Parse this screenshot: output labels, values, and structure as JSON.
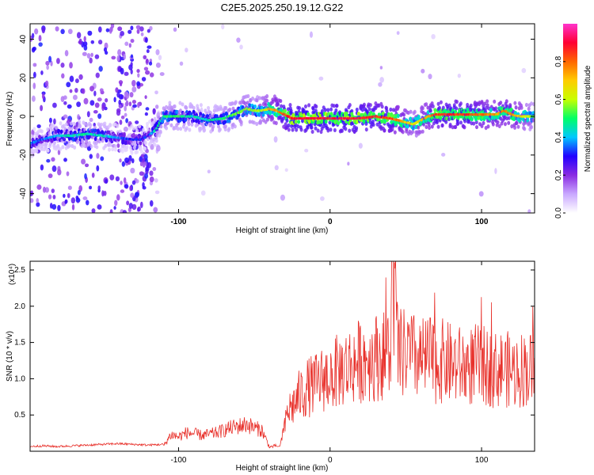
{
  "chart_data": [
    {
      "type": "heatmap",
      "title": "C2E5.2025.250.19.12.G22",
      "xlabel": "Height of straight line (km)",
      "ylabel": "Frequency (Hz)",
      "xlim": [
        -198,
        135
      ],
      "ylim": [
        -50,
        48
      ],
      "xticks": [
        -100,
        0,
        100
      ],
      "xtick_labels": [
        "-100",
        "0",
        "100"
      ],
      "yticks": [
        -40,
        -20,
        0,
        20,
        40
      ],
      "ytick_labels": [
        "-40",
        "-20",
        "0",
        "20",
        "40"
      ],
      "colorbar": {
        "label": "Normalized spectral amplitude",
        "range": [
          0,
          1
        ],
        "ticks": [
          0.0,
          0.2,
          0.4,
          0.6,
          0.8
        ],
        "tick_labels": [
          "0.0",
          "0.2",
          "0.4",
          "0.6",
          "0.8"
        ],
        "colors": [
          "#ffffff",
          "#c9a8ff",
          "#8a2be2",
          "#2200ff",
          "#00c8ff",
          "#00ff66",
          "#c8ff00",
          "#ffcc00",
          "#ff6600",
          "#ff0033",
          "#ff33cc"
        ]
      },
      "ridge": {
        "x": [
          -198,
          -190,
          -180,
          -170,
          -160,
          -150,
          -140,
          -130,
          -125,
          -120,
          -115,
          -110,
          -100,
          -90,
          -80,
          -70,
          -60,
          -55,
          -50,
          -45,
          -40,
          -35,
          -30,
          -25,
          -20,
          -10,
          0,
          10,
          20,
          30,
          40,
          50,
          55,
          60,
          65,
          70,
          80,
          90,
          100,
          110,
          115,
          120,
          125,
          130,
          135
        ],
        "freq": [
          -14,
          -12,
          -10,
          -10,
          -9,
          -10,
          -11,
          -12,
          -12,
          -10,
          -7,
          0,
          0,
          0,
          -2,
          -1,
          2,
          4,
          3,
          3,
          4,
          3,
          1,
          -1,
          -1,
          -1,
          -1,
          -1,
          -1,
          0,
          -1,
          -3,
          -4,
          -2,
          0,
          1,
          1,
          1,
          1,
          1,
          3,
          1,
          0,
          0,
          0
        ],
        "amp": [
          0.35,
          0.35,
          0.4,
          0.45,
          0.45,
          0.45,
          0.35,
          0.3,
          0.3,
          0.3,
          0.45,
          0.5,
          0.5,
          0.45,
          0.45,
          0.5,
          0.55,
          0.6,
          0.55,
          0.6,
          0.7,
          0.75,
          0.85,
          0.9,
          0.9,
          0.9,
          0.9,
          0.9,
          0.9,
          0.85,
          0.85,
          0.7,
          0.6,
          0.7,
          0.75,
          0.85,
          0.85,
          0.85,
          0.8,
          0.75,
          0.8,
          0.75,
          0.7,
          0.6,
          0.55
        ]
      }
    },
    {
      "type": "line",
      "xlabel": "Height of straight line (km)",
      "ylabel": "SNR (10 * v/v)",
      "multiplier": "(x10⁴)",
      "xlim": [
        -198,
        135
      ],
      "ylim": [
        0,
        2.62
      ],
      "xticks": [
        -100,
        0,
        100
      ],
      "xtick_labels": [
        "-100",
        "0",
        "100"
      ],
      "yticks": [
        0.5,
        1.0,
        1.5,
        2.0,
        2.5
      ],
      "ytick_labels": [
        "0.5",
        "1.0",
        "1.5",
        "2.0",
        "2.5"
      ],
      "color": "#e8312b",
      "series": [
        {
          "name": "SNR",
          "x": [
            -198,
            -190,
            -180,
            -170,
            -160,
            -150,
            -140,
            -130,
            -120,
            -110,
            -105,
            -100,
            -95,
            -90,
            -85,
            -80,
            -75,
            -70,
            -65,
            -60,
            -55,
            -50,
            -45,
            -40,
            -33,
            -32,
            -30,
            -28,
            -25,
            -22,
            -20,
            -17,
            -15,
            -12,
            -10,
            -7,
            -5,
            -2,
            0,
            5,
            10,
            15,
            20,
            25,
            30,
            35,
            40,
            41,
            45,
            50,
            55,
            60,
            65,
            70,
            75,
            80,
            85,
            90,
            95,
            100,
            105,
            110,
            115,
            120,
            125,
            130,
            135
          ],
          "y": [
            0.03,
            0.04,
            0.03,
            0.04,
            0.05,
            0.06,
            0.07,
            0.06,
            0.05,
            0.06,
            0.2,
            0.17,
            0.22,
            0.21,
            0.19,
            0.2,
            0.22,
            0.25,
            0.28,
            0.3,
            0.32,
            0.28,
            0.25,
            0.05,
            0.07,
            0.2,
            0.32,
            0.55,
            0.62,
            0.7,
            0.78,
            0.82,
            0.88,
            0.9,
            0.92,
            0.95,
            1.0,
            1.02,
            1.05,
            1.1,
            1.15,
            1.2,
            1.25,
            1.28,
            1.3,
            1.32,
            1.35,
            2.62,
            1.32,
            1.35,
            1.3,
            1.25,
            1.28,
            1.2,
            1.25,
            1.2,
            1.18,
            1.15,
            1.2,
            1.18,
            1.15,
            1.12,
            1.15,
            1.1,
            1.12,
            1.15,
            1.1
          ]
        }
      ]
    }
  ]
}
